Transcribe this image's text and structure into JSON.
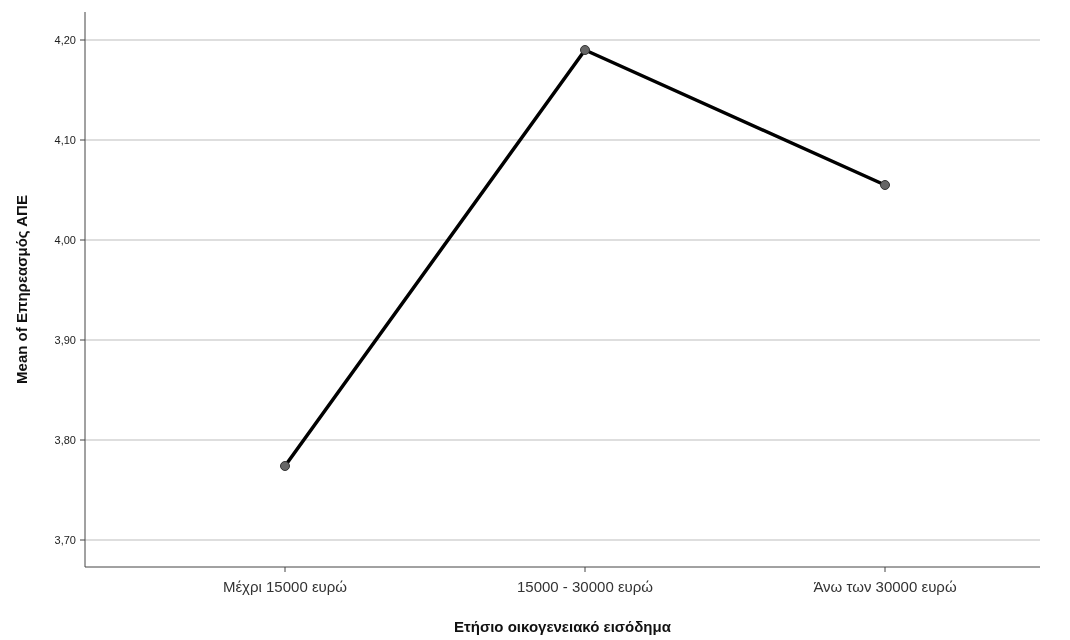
{
  "chart_data": {
    "type": "line",
    "xlabel": "Ετήσιο οικογενειακό εισόδημα",
    "ylabel": "Mean of Επηρεασμός ΑΠΕ",
    "categories": [
      "Μέχρι 15000 ευρώ",
      "15000 - 30000 ευρώ",
      "Άνω των 30000 ευρώ"
    ],
    "series": [
      {
        "color": "#000000",
        "values": [
          3.774,
          4.19,
          4.055
        ]
      }
    ],
    "ylim": [
      3.673,
      4.228
    ],
    "yticks": [
      {
        "value": 3.7,
        "label": "3,70"
      },
      {
        "value": 3.8,
        "label": "3,80"
      },
      {
        "value": 3.9,
        "label": "3,90"
      },
      {
        "value": 4.0,
        "label": "4,00"
      },
      {
        "value": 4.1,
        "label": "4,10"
      },
      {
        "value": 4.2,
        "label": "4,20"
      }
    ],
    "grid": "y",
    "marker": "circle",
    "line_style": "solid"
  }
}
